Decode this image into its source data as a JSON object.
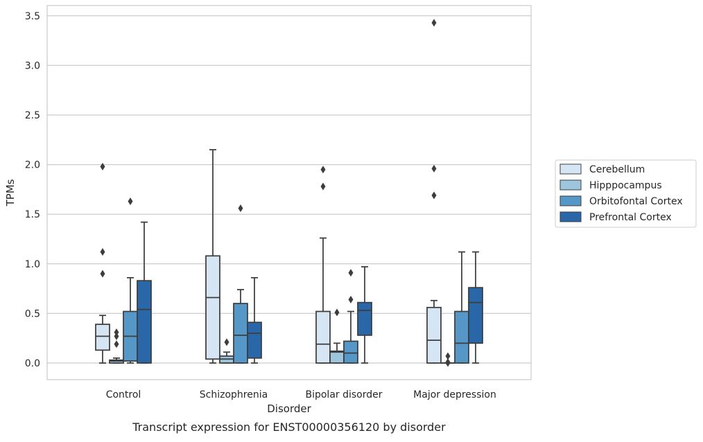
{
  "chart_data": {
    "type": "box",
    "xlabel": "Disorder",
    "ylabel": "TPMs",
    "caption": "Transcript expression for ENST00000356120 by disorder",
    "ylim": [
      -0.17,
      3.6
    ],
    "yticks": [
      "0.0",
      "0.5",
      "1.0",
      "1.5",
      "2.0",
      "2.5",
      "3.0",
      "3.5"
    ],
    "grid": "horizontal",
    "legend_position": "right",
    "categories": [
      "Control",
      "Schizophrenia",
      "Bipolar disorder",
      "Major depression"
    ],
    "series": [
      {
        "name": "Cerebellum",
        "color": "#d6e5f4",
        "boxes": [
          {
            "whislo": 0.0,
            "q1": 0.13,
            "med": 0.27,
            "q3": 0.39,
            "whishi": 0.48,
            "fliers": [
              0.9,
              1.12,
              1.98
            ]
          },
          {
            "whislo": 0.0,
            "q1": 0.04,
            "med": 0.66,
            "q3": 1.08,
            "whishi": 2.15,
            "fliers": []
          },
          {
            "whislo": 0.0,
            "q1": 0.0,
            "med": 0.19,
            "q3": 0.52,
            "whishi": 1.26,
            "fliers": [
              1.78,
              1.95
            ]
          },
          {
            "whislo": 0.0,
            "q1": 0.0,
            "med": 0.23,
            "q3": 0.56,
            "whishi": 0.63,
            "fliers": [
              1.69,
              1.96,
              3.43
            ]
          }
        ]
      },
      {
        "name": "Hipppocampus",
        "color": "#9dc5de",
        "boxes": [
          {
            "whislo": 0.0,
            "q1": 0.0,
            "med": 0.02,
            "q3": 0.03,
            "whishi": 0.05,
            "fliers": [
              0.19,
              0.27,
              0.31
            ]
          },
          {
            "whislo": 0.0,
            "q1": 0.0,
            "med": 0.04,
            "q3": 0.07,
            "whishi": 0.11,
            "fliers": [
              0.21
            ]
          },
          {
            "whislo": 0.0,
            "q1": 0.0,
            "med": 0.11,
            "q3": 0.12,
            "whishi": 0.2,
            "fliers": [
              0.51
            ]
          },
          {
            "whislo": 0.0,
            "q1": 0.0,
            "med": 0.0,
            "q3": 0.0,
            "whishi": 0.0,
            "fliers": [
              0.0,
              0.01,
              0.07
            ]
          }
        ]
      },
      {
        "name": "Orbitofontal Cortex",
        "color": "#5598c7",
        "boxes": [
          {
            "whislo": 0.0,
            "q1": 0.02,
            "med": 0.27,
            "q3": 0.52,
            "whishi": 0.86,
            "fliers": [
              1.63
            ]
          },
          {
            "whislo": 0.0,
            "q1": 0.0,
            "med": 0.28,
            "q3": 0.6,
            "whishi": 0.74,
            "fliers": [
              1.56
            ]
          },
          {
            "whislo": 0.0,
            "q1": 0.0,
            "med": 0.1,
            "q3": 0.22,
            "whishi": 0.52,
            "fliers": [
              0.64,
              0.91
            ]
          },
          {
            "whislo": 0.0,
            "q1": 0.0,
            "med": 0.2,
            "q3": 0.52,
            "whishi": 1.12,
            "fliers": []
          }
        ]
      },
      {
        "name": "Prefrontal Cortex",
        "color": "#2967a8",
        "boxes": [
          {
            "whislo": 0.0,
            "q1": 0.0,
            "med": 0.54,
            "q3": 0.83,
            "whishi": 1.42,
            "fliers": []
          },
          {
            "whislo": 0.0,
            "q1": 0.05,
            "med": 0.3,
            "q3": 0.41,
            "whishi": 0.86,
            "fliers": []
          },
          {
            "whislo": 0.0,
            "q1": 0.28,
            "med": 0.53,
            "q3": 0.61,
            "whishi": 0.97,
            "fliers": []
          },
          {
            "whislo": 0.0,
            "q1": 0.2,
            "med": 0.61,
            "q3": 0.76,
            "whishi": 1.12,
            "fliers": []
          }
        ]
      }
    ]
  }
}
